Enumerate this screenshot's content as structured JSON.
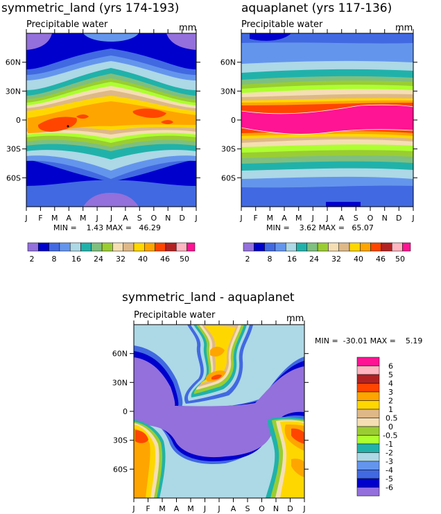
{
  "chart_data": [
    {
      "type": "heatmap",
      "title": "symmetric_land (yrs 174-193)",
      "subtitle": "Precipitable water",
      "units": "mm",
      "x_ticks": [
        "J",
        "F",
        "M",
        "A",
        "M",
        "J",
        "J",
        "A",
        "S",
        "O",
        "N",
        "D",
        "J"
      ],
      "y_ticks": [
        {
          "lat": 60,
          "label": "60N"
        },
        {
          "lat": 30,
          "label": "30N"
        },
        {
          "lat": 0,
          "label": "0"
        },
        {
          "lat": -30,
          "label": "30S"
        },
        {
          "lat": -60,
          "label": "60S"
        }
      ],
      "ylim": [
        -90,
        90
      ],
      "stats_text": "MIN =    1.43 MAX =   46.29",
      "min": 1.43,
      "max": 46.29,
      "contour_levels": [
        2,
        5,
        8,
        12,
        16,
        20,
        24,
        28,
        32,
        36,
        40,
        43,
        46,
        48,
        50
      ],
      "colorbar_labels": [
        "2",
        "8",
        "16",
        "24",
        "32",
        "40",
        "46",
        "50"
      ]
    },
    {
      "type": "heatmap",
      "title": "aquaplanet (yrs 117-136)",
      "subtitle": "Precipitable water",
      "units": "mm",
      "x_ticks": [
        "J",
        "F",
        "M",
        "A",
        "M",
        "J",
        "J",
        "A",
        "S",
        "O",
        "N",
        "D",
        "J"
      ],
      "y_ticks": [
        {
          "lat": 60,
          "label": "60N"
        },
        {
          "lat": 30,
          "label": "30N"
        },
        {
          "lat": 0,
          "label": "0"
        },
        {
          "lat": -30,
          "label": "30S"
        },
        {
          "lat": -60,
          "label": "60S"
        }
      ],
      "ylim": [
        -90,
        90
      ],
      "stats_text": "MIN =    3.62 MAX =   65.07",
      "min": 3.62,
      "max": 65.07,
      "contour_levels": [
        2,
        5,
        8,
        12,
        16,
        20,
        24,
        28,
        32,
        36,
        40,
        43,
        46,
        48,
        50
      ],
      "colorbar_labels": [
        "2",
        "8",
        "16",
        "24",
        "32",
        "40",
        "46",
        "50"
      ]
    },
    {
      "type": "heatmap",
      "title": "symmetric_land - aquaplanet",
      "subtitle": "Precipitable water",
      "units": "mm",
      "x_ticks": [
        "J",
        "F",
        "M",
        "A",
        "M",
        "J",
        "J",
        "A",
        "S",
        "O",
        "N",
        "D",
        "J"
      ],
      "y_ticks": [
        {
          "lat": 60,
          "label": "60N"
        },
        {
          "lat": 30,
          "label": "30N"
        },
        {
          "lat": 0,
          "label": "0"
        },
        {
          "lat": -30,
          "label": "30S"
        },
        {
          "lat": -60,
          "label": "60S"
        }
      ],
      "ylim": [
        -90,
        90
      ],
      "stats_text": "MIN =  -30.01 MAX =    5.19",
      "min": -30.01,
      "max": 5.19,
      "contour_levels": [
        -6,
        -5,
        -4,
        -3,
        -2,
        -1,
        -0.5,
        0,
        0.5,
        1,
        2,
        3,
        4,
        5,
        6
      ],
      "colorbar_labels": [
        "6",
        "5",
        "4",
        "3",
        "2",
        "1",
        "0.5",
        "0",
        "-0.5",
        "-1",
        "-2",
        "-3",
        "-4",
        "-5",
        "-6"
      ]
    }
  ],
  "palette": {
    "level_colors": [
      "#9370db",
      "#0000cd",
      "#4169e1",
      "#6495ed",
      "#add8e6",
      "#20b2aa",
      "#7fbf7f",
      "#9acd32",
      "#adff2f",
      "#f5deb3",
      "#deb887",
      "#ffd700",
      "#ffa500",
      "#ff4500",
      "#b22222",
      "#ffb6c1",
      "#ff1493"
    ]
  }
}
